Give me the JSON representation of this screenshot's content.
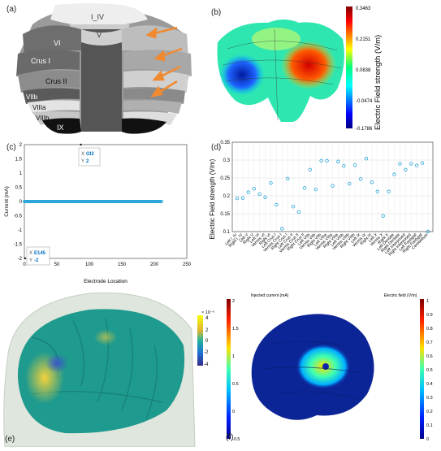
{
  "panels": {
    "a": {
      "label": "(a)",
      "regions": [
        "I_IV",
        "V",
        "VI",
        "Crus I",
        "Crus II",
        "VIIb",
        "VIIIa",
        "VIIIb",
        "IX"
      ]
    },
    "b": {
      "label": "(b)",
      "colorbar_title": "Electric Field strength (V/m)",
      "colorbar_ticks": [
        "0.3463",
        "0.2151",
        "0.0838",
        "-0.0474",
        "-0.1786"
      ]
    },
    "c": {
      "label": "(c)",
      "tooltip_top": {
        "x_label": "X",
        "x_value": "OI2",
        "y_label": "Y",
        "y_value": "2"
      },
      "tooltip_bottom": {
        "x_label": "X",
        "x_value": "E145",
        "y_label": "Y",
        "y_value": "-2"
      }
    },
    "d": {
      "label": "(d)"
    },
    "e": {
      "label": "(e)",
      "colorbar_exponent": "× 10⁻⁶",
      "colorbar_ticks": [
        "4",
        "2",
        "0",
        "-2",
        "-4"
      ]
    },
    "f": {
      "label": "(f)",
      "cb1_title": "Injected current (mA)",
      "cb1_ticks": [
        "2",
        "1.5",
        "1",
        "0.5",
        "0",
        "-0.5"
      ],
      "cb2_title": "Electric field (V/m)",
      "cb2_ticks": [
        "1",
        "0.9",
        "0.8",
        "0.7",
        "0.6",
        "0.5",
        "0.4",
        "0.3",
        "0.2",
        "0.1",
        "0"
      ]
    }
  },
  "chart_data": [
    {
      "type": "scatter",
      "panel": "c",
      "xlabel": "Electrode Location",
      "ylabel": "Current (mA)",
      "xlim": [
        0,
        250
      ],
      "ylim": [
        -2,
        2
      ],
      "xticks": [
        "0",
        "50",
        "100",
        "150",
        "200",
        "250"
      ],
      "yticks": [
        "2",
        "1.5",
        "1",
        "0.5",
        "0",
        "-0.5",
        "-1",
        "-1.5",
        "-2"
      ],
      "grid": false,
      "n_points": 212,
      "baseline_value": 0,
      "highlight_points": [
        {
          "x_label": "OI2",
          "x": 87,
          "y": 2
        },
        {
          "x_label": "E145",
          "x": 1,
          "y": -2
        }
      ]
    },
    {
      "type": "scatter",
      "panel": "d",
      "ylabel": "Electric Field strength (V/m)",
      "ylim": [
        0.1,
        0.35
      ],
      "yticks": [
        "0.35",
        "0.3",
        "0.25",
        "0.2",
        "0.15",
        "0.1"
      ],
      "grid": true,
      "categories": [
        "Left I_IV",
        "Right I_IV",
        "Left V",
        "Right V",
        "Left VI",
        "Vermis VI",
        "Right VI",
        "Left Crus I",
        "Vermis Crus I",
        "Right Crus I",
        "Left Crus II",
        "Vermis Crus II",
        "Right Crus II",
        "Left VIIb",
        "Vermis VIIb",
        "Right VIIb",
        "Left VIIIa",
        "Vermis VIIIa",
        "Right VIIIa",
        "Left VIIIb",
        "Vermis VIIIb",
        "Right VIIIb",
        "Left IX",
        "Vermis IX",
        "Right IX",
        "Left X",
        "Vermis X",
        "Right X",
        "Left Dentate",
        "Right Dentate",
        "Left Interposed",
        "Right Interposed",
        "Left Fastigial",
        "Right Fastigial",
        "Cerebellum"
      ],
      "values": [
        0.193,
        0.194,
        0.21,
        0.22,
        0.205,
        0.196,
        0.236,
        0.175,
        0.108,
        0.248,
        0.17,
        0.155,
        0.222,
        0.273,
        0.218,
        0.298,
        0.298,
        0.228,
        0.296,
        0.284,
        0.234,
        0.286,
        0.247,
        0.304,
        0.238,
        0.212,
        0.144,
        0.212,
        0.26,
        0.29,
        0.273,
        0.29,
        0.285,
        0.292,
        0.1
      ]
    }
  ]
}
